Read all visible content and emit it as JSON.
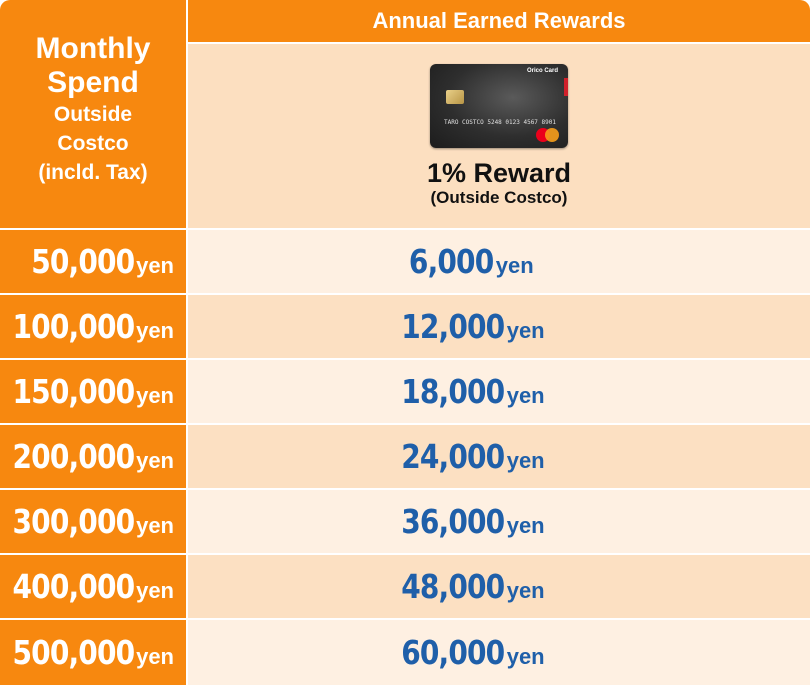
{
  "header": {
    "row_header": {
      "line1": "Monthly",
      "line2": "Spend",
      "line3": "Outside",
      "line4": "Costco",
      "line5": "(incld. Tax)"
    },
    "column_title": "Annual Earned Rewards"
  },
  "card": {
    "brand_text": "Orico Card",
    "number_text": "TARO COSTCO  5248 0123 4567 8901",
    "reward_title": "1% Reward",
    "reward_subtitle": "(Outside Costco)"
  },
  "unit": "yen",
  "rows": [
    {
      "spend": "50,000",
      "reward": "6,000"
    },
    {
      "spend": "100,000",
      "reward": "12,000"
    },
    {
      "spend": "150,000",
      "reward": "18,000"
    },
    {
      "spend": "200,000",
      "reward": "24,000"
    },
    {
      "spend": "300,000",
      "reward": "36,000"
    },
    {
      "spend": "400,000",
      "reward": "48,000"
    },
    {
      "spend": "500,000",
      "reward": "60,000"
    }
  ],
  "colors": {
    "header_orange": "#f7880f",
    "card_cell_bg": "#fcdfc0",
    "row_light": "#fef0e2",
    "row_dark": "#fce0c2",
    "reward_blue": "#1f5fa9"
  }
}
